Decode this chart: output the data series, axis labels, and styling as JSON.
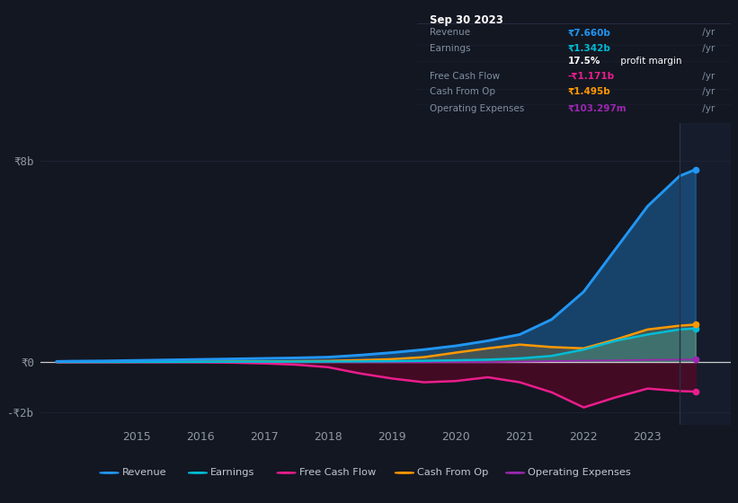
{
  "bg_color": "#131722",
  "plot_bg_color": "#131722",
  "grid_color": "#1e2535",
  "years": [
    2013.75,
    2014.0,
    2014.5,
    2015.0,
    2015.5,
    2016.0,
    2016.5,
    2017.0,
    2017.5,
    2018.0,
    2018.5,
    2019.0,
    2019.5,
    2020.0,
    2020.5,
    2021.0,
    2021.5,
    2022.0,
    2022.5,
    2023.0,
    2023.5,
    2023.75
  ],
  "revenue": [
    0.03,
    0.04,
    0.05,
    0.07,
    0.09,
    0.11,
    0.13,
    0.15,
    0.17,
    0.2,
    0.28,
    0.38,
    0.5,
    0.65,
    0.85,
    1.1,
    1.7,
    2.8,
    4.5,
    6.2,
    7.4,
    7.66
  ],
  "earnings": [
    0.005,
    0.007,
    0.008,
    0.01,
    0.012,
    0.015,
    0.018,
    0.02,
    0.022,
    0.025,
    0.03,
    0.04,
    0.055,
    0.075,
    0.1,
    0.15,
    0.25,
    0.5,
    0.85,
    1.1,
    1.3,
    1.342
  ],
  "free_cash_flow": [
    0.0,
    0.0,
    0.0,
    0.0,
    0.0,
    0.0,
    -0.02,
    -0.05,
    -0.1,
    -0.2,
    -0.45,
    -0.65,
    -0.8,
    -0.75,
    -0.6,
    -0.8,
    -1.2,
    -1.8,
    -1.4,
    -1.05,
    -1.15,
    -1.171
  ],
  "cash_from_op": [
    0.005,
    0.008,
    0.01,
    0.015,
    0.018,
    0.02,
    0.025,
    0.03,
    0.038,
    0.05,
    0.08,
    0.12,
    0.2,
    0.38,
    0.55,
    0.7,
    0.6,
    0.55,
    0.9,
    1.3,
    1.45,
    1.495
  ],
  "operating_expenses": [
    0.0,
    0.0,
    0.0,
    0.0,
    0.0,
    0.0,
    0.0,
    0.0,
    0.0,
    0.0,
    0.0,
    0.0,
    0.0,
    0.0,
    0.0,
    0.02,
    0.04,
    0.06,
    0.07,
    0.09,
    0.1,
    0.103
  ],
  "revenue_color": "#2196f3",
  "earnings_color": "#00bcd4",
  "free_cash_flow_color": "#e91e8c",
  "cash_from_op_color": "#ff9800",
  "operating_expenses_color": "#9c27b0",
  "zero_line_color": "#cccccc",
  "ytick_labels": [
    "₹8b",
    "₹0",
    "-₹2b"
  ],
  "ytick_vals": [
    8.0,
    0.0,
    -2.0
  ],
  "xtick_labels": [
    "2015",
    "2016",
    "2017",
    "2018",
    "2019",
    "2020",
    "2021",
    "2022",
    "2023"
  ],
  "xtick_vals": [
    2015,
    2016,
    2017,
    2018,
    2019,
    2020,
    2021,
    2022,
    2023
  ],
  "divider_x": 2023.5,
  "info_box_title": "Sep 30 2023",
  "info_rows": [
    {
      "label": "Revenue",
      "value": "₹7.660b",
      "suffix": " /yr",
      "value_color": "#2196f3"
    },
    {
      "label": "Earnings",
      "value": "₹1.342b",
      "suffix": " /yr",
      "value_color": "#00bcd4"
    },
    {
      "label": "",
      "value": "17.5%",
      "suffix": " profit margin",
      "value_color": "#ffffff",
      "is_margin": true
    },
    {
      "label": "Free Cash Flow",
      "value": "-₹1.171b",
      "suffix": " /yr",
      "value_color": "#e91e8c"
    },
    {
      "label": "Cash From Op",
      "value": "₹1.495b",
      "suffix": " /yr",
      "value_color": "#ff9800"
    },
    {
      "label": "Operating Expenses",
      "value": "₹103.297m",
      "suffix": " /yr",
      "value_color": "#9c27b0"
    }
  ],
  "legend": [
    {
      "label": "Revenue",
      "color": "#2196f3"
    },
    {
      "label": "Earnings",
      "color": "#00bcd4"
    },
    {
      "label": "Free Cash Flow",
      "color": "#e91e8c"
    },
    {
      "label": "Cash From Op",
      "color": "#ff9800"
    },
    {
      "label": "Operating Expenses",
      "color": "#9c27b0"
    }
  ],
  "ylim_b": [
    -2.5,
    9.5
  ],
  "xlim": [
    2013.5,
    2024.3
  ]
}
